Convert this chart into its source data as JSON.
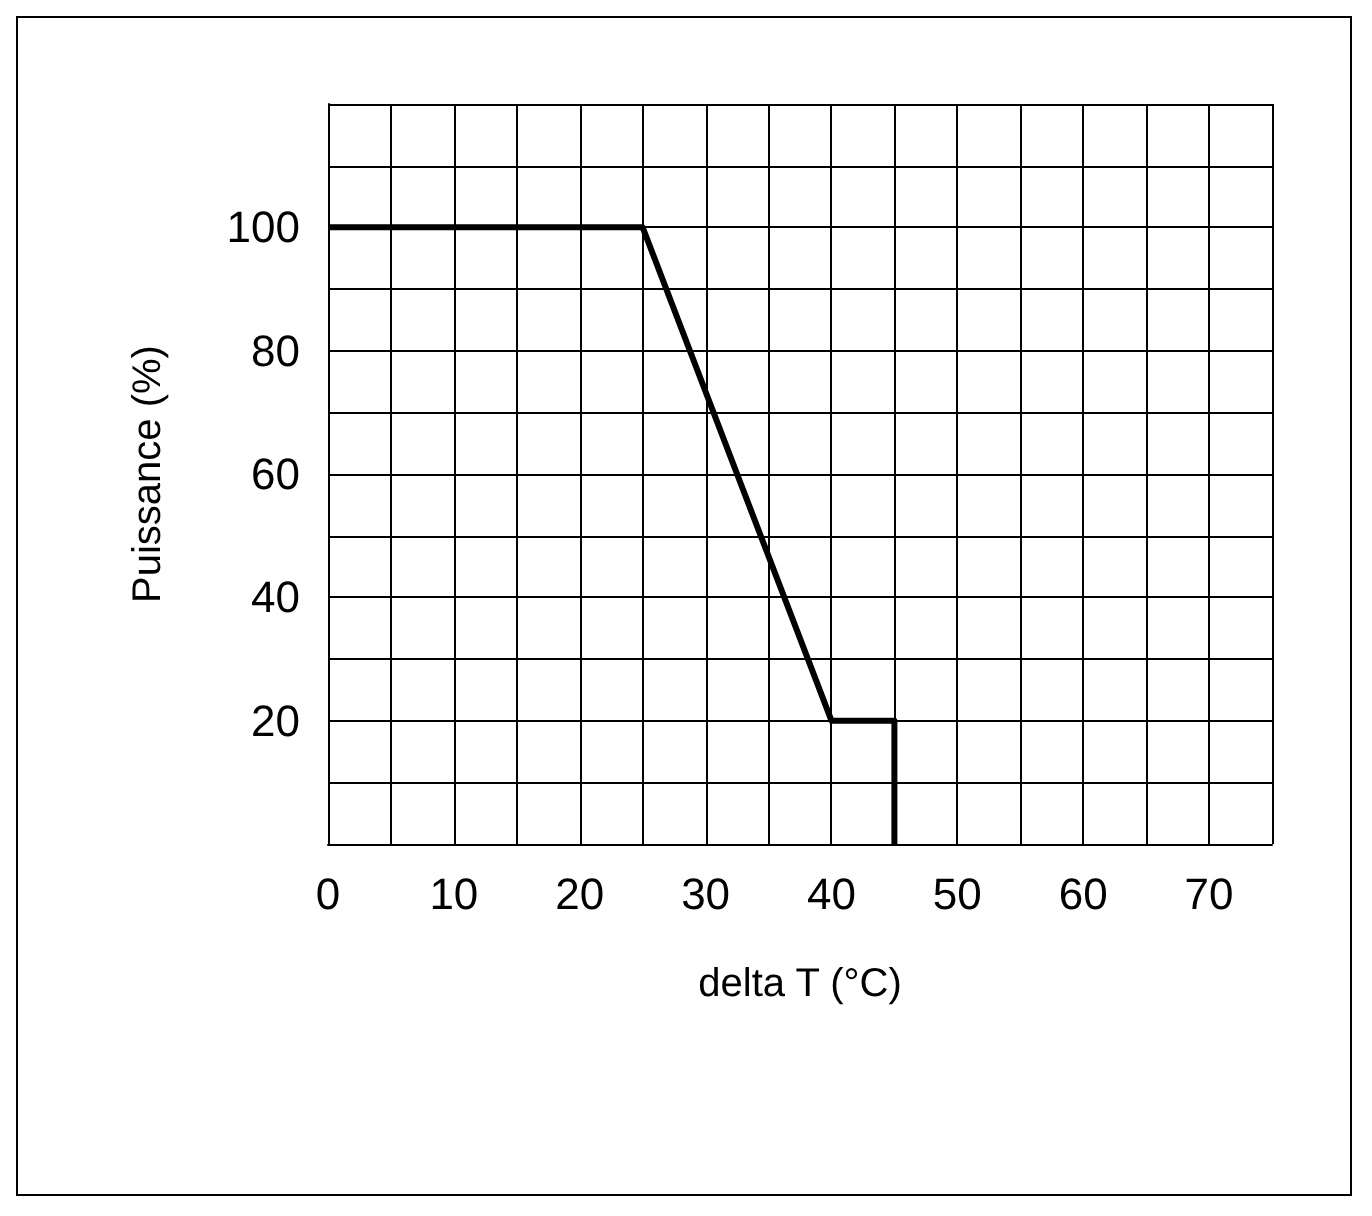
{
  "chart_data": {
    "type": "line",
    "xlabel": "delta T (°C)",
    "ylabel": "Puissance (%)",
    "x": [
      0,
      25,
      40,
      45,
      45
    ],
    "series": [
      {
        "color": "#000000",
        "values": [
          100,
          100,
          20,
          20,
          0
        ]
      }
    ],
    "xlim": [
      0,
      75
    ],
    "xticks": [
      0,
      {
        "value": 5,
        "label": null
      },
      10,
      {
        "value": 15,
        "label": null
      },
      20,
      {
        "value": 25,
        "label": null
      },
      30,
      {
        "value": 35,
        "label": null
      },
      40,
      {
        "value": 45,
        "label": null
      },
      50,
      {
        "value": 55,
        "label": null
      },
      60,
      {
        "value": 65,
        "label": null
      },
      70,
      {
        "value": 75,
        "label": null
      }
    ],
    "ylim": [
      0,
      120
    ],
    "yticks": [
      {
        "value": 0,
        "label": null
      },
      {
        "value": 10,
        "label": null
      },
      20,
      {
        "value": 30,
        "label": null
      },
      40,
      {
        "value": 50,
        "label": null
      },
      60,
      {
        "value": 70,
        "label": null
      },
      80,
      {
        "value": 90,
        "label": null
      },
      100,
      {
        "value": 110,
        "label": null
      },
      {
        "value": 120,
        "label": null
      }
    ],
    "grid": true,
    "marker": "none",
    "line_style": "solid"
  }
}
